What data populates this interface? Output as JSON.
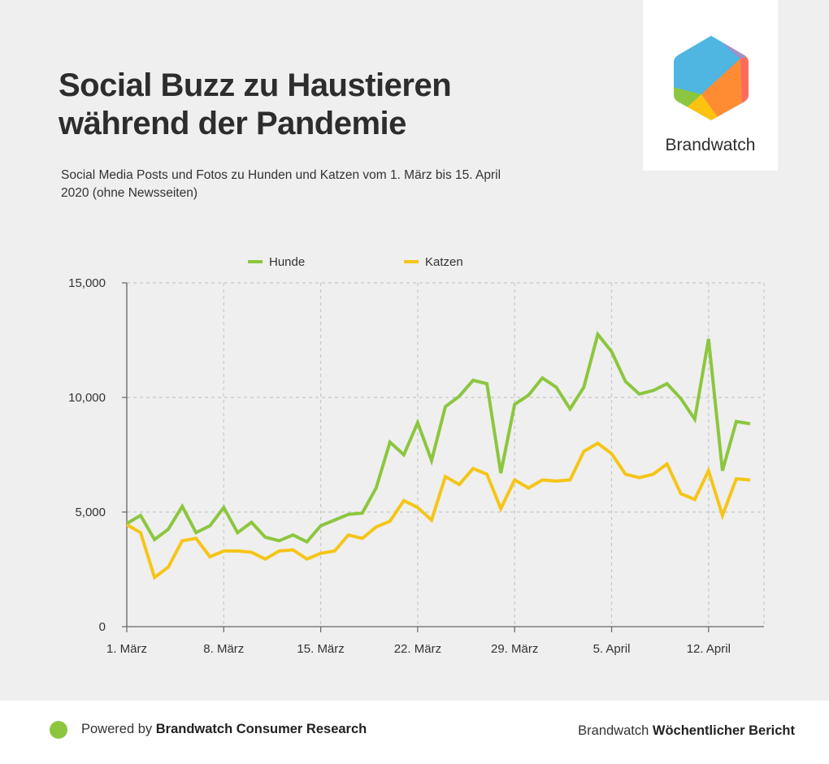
{
  "header": {
    "title_line1": "Social Buzz zu Haustieren",
    "title_line2": "während der Pandemie",
    "subtitle": "Social Media Posts und Fotos zu Hunden und Katzen vom 1. März bis 15. April 2020 (ohne Newsseiten)"
  },
  "logo": {
    "name": "Brandwatch"
  },
  "footer": {
    "powered_prefix": "Powered by",
    "powered_brand": "Brandwatch Consumer Research",
    "report_prefix": "Brandwatch",
    "report_name": "Wöchentlicher Bericht"
  },
  "colors": {
    "hunde": "#8cc63f",
    "katzen": "#f5c518",
    "grid": "#c8c8c8",
    "axis": "#666666"
  },
  "chart_data": {
    "type": "line",
    "title": "Social Buzz zu Haustieren während der Pandemie",
    "xlabel": "",
    "ylabel": "",
    "ylim": [
      0,
      15000
    ],
    "yticks": [
      0,
      5000,
      10000,
      15000
    ],
    "ytick_labels": [
      "0",
      "5,000",
      "10,000",
      "15,000"
    ],
    "x_start_day": 1,
    "x_end_day": 47,
    "xticks": [
      {
        "day": 1,
        "label": "1. März"
      },
      {
        "day": 8,
        "label": "8. März"
      },
      {
        "day": 15,
        "label": "15. März"
      },
      {
        "day": 22,
        "label": "22. März"
      },
      {
        "day": 29,
        "label": "29. März"
      },
      {
        "day": 36,
        "label": "5. April"
      },
      {
        "day": 43,
        "label": "12. April"
      }
    ],
    "legend_position": "top-center",
    "series": [
      {
        "name": "Hunde",
        "color": "#8cc63f",
        "values": [
          4500,
          4850,
          3800,
          4250,
          5250,
          4100,
          4400,
          5200,
          4100,
          4550,
          3900,
          3750,
          4000,
          3700,
          4400,
          4650,
          4900,
          4950,
          6050,
          8050,
          7500,
          8900,
          7250,
          9600,
          10050,
          10750,
          10600,
          6700,
          9700,
          10100,
          10850,
          10450,
          9500,
          10450,
          12750,
          12000,
          10700,
          10150,
          10300,
          10600,
          9950,
          9050,
          12550,
          6800,
          8950,
          8850
        ]
      },
      {
        "name": "Katzen",
        "color": "#f5c518",
        "values": [
          4450,
          4100,
          2150,
          2600,
          3750,
          3850,
          3050,
          3300,
          3300,
          3250,
          2950,
          3300,
          3350,
          2950,
          3200,
          3300,
          4000,
          3850,
          4350,
          4600,
          5500,
          5200,
          4650,
          6550,
          6200,
          6900,
          6650,
          5150,
          6400,
          6050,
          6400,
          6350,
          6400,
          7650,
          8000,
          7550,
          6650,
          6500,
          6650,
          7100,
          5800,
          5550,
          6800,
          4850,
          6450,
          6400
        ]
      }
    ]
  }
}
